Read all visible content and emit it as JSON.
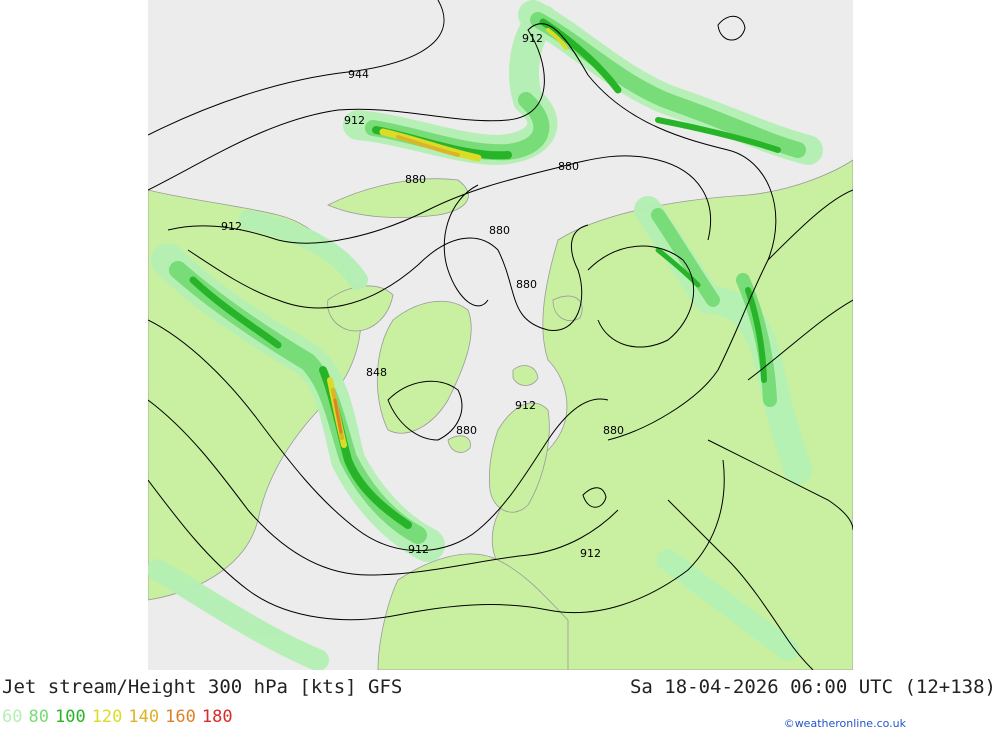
{
  "title": "Jet stream/Height 300 hPa [kts] GFS",
  "datetime": "Sa 18-04-2026 06:00 UTC (12+138)",
  "legend": [
    {
      "value": "60",
      "color": "#b4f0b4"
    },
    {
      "value": "80",
      "color": "#78dc78"
    },
    {
      "value": "100",
      "color": "#28b428"
    },
    {
      "value": "120",
      "color": "#dcdc28"
    },
    {
      "value": "140",
      "color": "#dcb428"
    },
    {
      "value": "160",
      "color": "#dc8228"
    },
    {
      "value": "180",
      "color": "#dc2828"
    }
  ],
  "credit": "©weatheronline.co.uk",
  "contour_labels": [
    "944",
    "912",
    "912",
    "880",
    "880",
    "912",
    "880",
    "880",
    "848",
    "912",
    "880",
    "880",
    "912",
    "912"
  ],
  "colors": {
    "ocean": "#ececec",
    "land": "#c8f0a0",
    "contour": "#000000",
    "coastline": "#9a9a9a"
  }
}
